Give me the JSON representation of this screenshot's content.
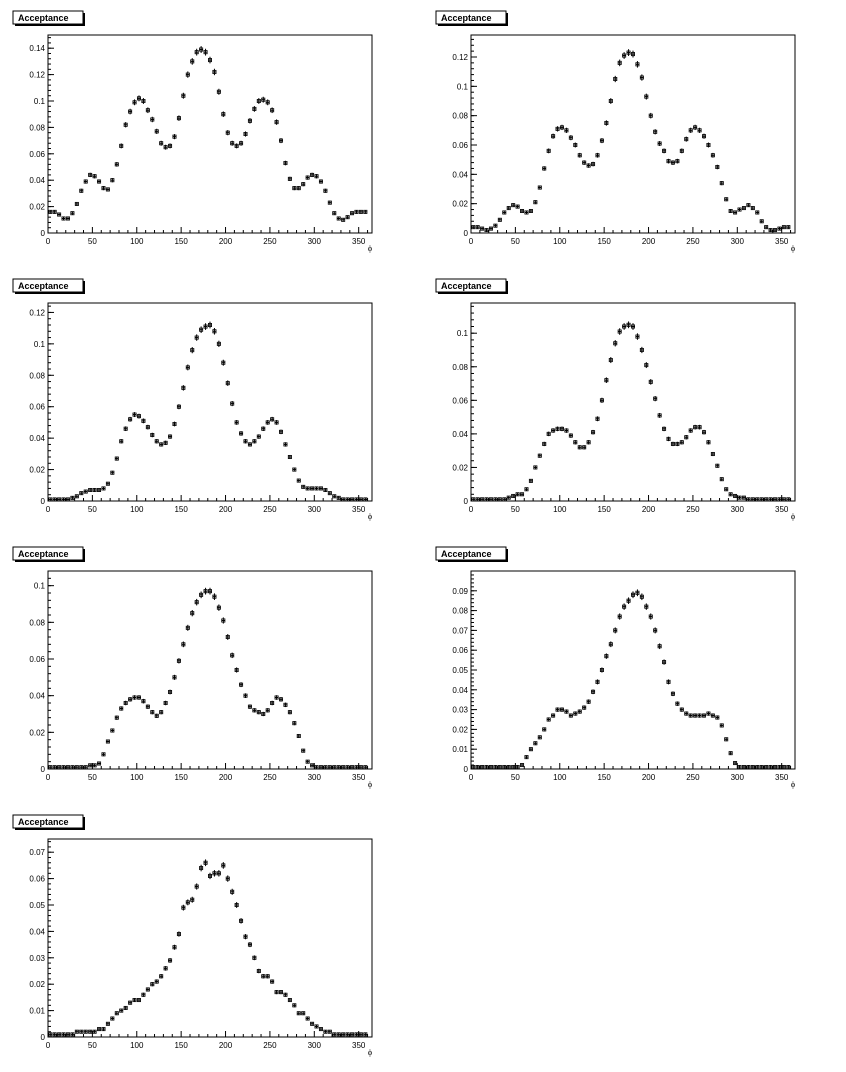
{
  "chart_data": [
    {
      "type": "scatter",
      "title": "Acceptance",
      "xlabel": "ϕ",
      "ylabel": "",
      "xlim": [
        0,
        365
      ],
      "ylim": [
        0,
        0.15
      ],
      "xticks": [
        0,
        50,
        100,
        150,
        200,
        250,
        300,
        350
      ],
      "yticks": [
        0,
        0.02,
        0.04,
        0.06,
        0.08,
        0.1,
        0.12,
        0.14
      ],
      "ytick_labels": [
        "0",
        "0.02",
        "0.04",
        "0.06",
        "0.08",
        "0.1",
        "0.12",
        "0.14"
      ],
      "x": [
        2.5,
        7.5,
        12.5,
        17.5,
        22.5,
        27.5,
        32.5,
        37.5,
        42.5,
        47.5,
        52.5,
        57.5,
        62.5,
        67.5,
        72.5,
        77.5,
        82.5,
        87.5,
        92.5,
        97.5,
        102.5,
        107.5,
        112.5,
        117.5,
        122.5,
        127.5,
        132.5,
        137.5,
        142.5,
        147.5,
        152.5,
        157.5,
        162.5,
        167.5,
        172.5,
        177.5,
        182.5,
        187.5,
        192.5,
        197.5,
        202.5,
        207.5,
        212.5,
        217.5,
        222.5,
        227.5,
        232.5,
        237.5,
        242.5,
        247.5,
        252.5,
        257.5,
        262.5,
        267.5,
        272.5,
        277.5,
        282.5,
        287.5,
        292.5,
        297.5,
        302.5,
        307.5,
        312.5,
        317.5,
        322.5,
        327.5,
        332.5,
        337.5,
        342.5,
        347.5,
        352.5,
        357.5
      ],
      "y": [
        0.016,
        0.016,
        0.014,
        0.011,
        0.011,
        0.015,
        0.022,
        0.032,
        0.039,
        0.044,
        0.043,
        0.039,
        0.034,
        0.033,
        0.04,
        0.052,
        0.066,
        0.082,
        0.092,
        0.099,
        0.102,
        0.1,
        0.093,
        0.086,
        0.077,
        0.068,
        0.065,
        0.066,
        0.073,
        0.087,
        0.104,
        0.12,
        0.13,
        0.137,
        0.139,
        0.137,
        0.131,
        0.122,
        0.107,
        0.09,
        0.076,
        0.068,
        0.066,
        0.068,
        0.075,
        0.085,
        0.094,
        0.1,
        0.101,
        0.099,
        0.093,
        0.084,
        0.07,
        0.053,
        0.041,
        0.034,
        0.034,
        0.037,
        0.042,
        0.044,
        0.043,
        0.039,
        0.032,
        0.023,
        0.015,
        0.011,
        0.01,
        0.012,
        0.015,
        0.016,
        0.016,
        0.016
      ]
    },
    {
      "type": "scatter",
      "title": "Acceptance",
      "xlabel": "ϕ",
      "ylabel": "",
      "xlim": [
        0,
        365
      ],
      "ylim": [
        0,
        0.135
      ],
      "xticks": [
        0,
        50,
        100,
        150,
        200,
        250,
        300,
        350
      ],
      "yticks": [
        0,
        0.02,
        0.04,
        0.06,
        0.08,
        0.1,
        0.12
      ],
      "ytick_labels": [
        "0",
        "0.02",
        "0.04",
        "0.06",
        "0.08",
        "0.1",
        "0.12"
      ],
      "x": [
        2.5,
        7.5,
        12.5,
        17.5,
        22.5,
        27.5,
        32.5,
        37.5,
        42.5,
        47.5,
        52.5,
        57.5,
        62.5,
        67.5,
        72.5,
        77.5,
        82.5,
        87.5,
        92.5,
        97.5,
        102.5,
        107.5,
        112.5,
        117.5,
        122.5,
        127.5,
        132.5,
        137.5,
        142.5,
        147.5,
        152.5,
        157.5,
        162.5,
        167.5,
        172.5,
        177.5,
        182.5,
        187.5,
        192.5,
        197.5,
        202.5,
        207.5,
        212.5,
        217.5,
        222.5,
        227.5,
        232.5,
        237.5,
        242.5,
        247.5,
        252.5,
        257.5,
        262.5,
        267.5,
        272.5,
        277.5,
        282.5,
        287.5,
        292.5,
        297.5,
        302.5,
        307.5,
        312.5,
        317.5,
        322.5,
        327.5,
        332.5,
        337.5,
        342.5,
        347.5,
        352.5,
        357.5
      ],
      "y": [
        0.004,
        0.004,
        0.003,
        0.002,
        0.003,
        0.005,
        0.009,
        0.014,
        0.017,
        0.019,
        0.018,
        0.015,
        0.014,
        0.015,
        0.021,
        0.031,
        0.044,
        0.056,
        0.066,
        0.071,
        0.072,
        0.07,
        0.065,
        0.06,
        0.053,
        0.048,
        0.046,
        0.047,
        0.053,
        0.063,
        0.075,
        0.09,
        0.105,
        0.116,
        0.121,
        0.123,
        0.122,
        0.115,
        0.106,
        0.093,
        0.08,
        0.069,
        0.061,
        0.056,
        0.049,
        0.048,
        0.049,
        0.056,
        0.064,
        0.07,
        0.072,
        0.07,
        0.066,
        0.06,
        0.053,
        0.045,
        0.034,
        0.023,
        0.015,
        0.014,
        0.016,
        0.017,
        0.019,
        0.017,
        0.014,
        0.008,
        0.004,
        0.002,
        0.002,
        0.003,
        0.004,
        0.004
      ]
    },
    {
      "type": "scatter",
      "title": "Acceptance",
      "xlabel": "ϕ",
      "ylabel": "",
      "xlim": [
        0,
        365
      ],
      "ylim": [
        0,
        0.126
      ],
      "xticks": [
        0,
        50,
        100,
        150,
        200,
        250,
        300,
        350
      ],
      "yticks": [
        0,
        0.02,
        0.04,
        0.06,
        0.08,
        0.1,
        0.12
      ],
      "ytick_labels": [
        "0",
        "0.02",
        "0.04",
        "0.06",
        "0.08",
        "0.1",
        "0.12"
      ],
      "x": [
        2.5,
        7.5,
        12.5,
        17.5,
        22.5,
        27.5,
        32.5,
        37.5,
        42.5,
        47.5,
        52.5,
        57.5,
        62.5,
        67.5,
        72.5,
        77.5,
        82.5,
        87.5,
        92.5,
        97.5,
        102.5,
        107.5,
        112.5,
        117.5,
        122.5,
        127.5,
        132.5,
        137.5,
        142.5,
        147.5,
        152.5,
        157.5,
        162.5,
        167.5,
        172.5,
        177.5,
        182.5,
        187.5,
        192.5,
        197.5,
        202.5,
        207.5,
        212.5,
        217.5,
        222.5,
        227.5,
        232.5,
        237.5,
        242.5,
        247.5,
        252.5,
        257.5,
        262.5,
        267.5,
        272.5,
        277.5,
        282.5,
        287.5,
        292.5,
        297.5,
        302.5,
        307.5,
        312.5,
        317.5,
        322.5,
        327.5,
        332.5,
        337.5,
        342.5,
        347.5,
        352.5,
        357.5
      ],
      "y": [
        0.001,
        0.001,
        0.001,
        0.001,
        0.001,
        0.002,
        0.003,
        0.005,
        0.006,
        0.007,
        0.007,
        0.007,
        0.008,
        0.011,
        0.018,
        0.027,
        0.038,
        0.046,
        0.052,
        0.055,
        0.054,
        0.051,
        0.047,
        0.042,
        0.038,
        0.036,
        0.037,
        0.041,
        0.049,
        0.06,
        0.072,
        0.085,
        0.096,
        0.104,
        0.109,
        0.111,
        0.112,
        0.108,
        0.1,
        0.088,
        0.075,
        0.062,
        0.05,
        0.043,
        0.038,
        0.036,
        0.038,
        0.041,
        0.046,
        0.05,
        0.052,
        0.05,
        0.044,
        0.036,
        0.028,
        0.02,
        0.013,
        0.009,
        0.008,
        0.008,
        0.008,
        0.008,
        0.007,
        0.005,
        0.003,
        0.002,
        0.001,
        0.001,
        0.001,
        0.001,
        0.001,
        0.001
      ]
    },
    {
      "type": "scatter",
      "title": "Acceptance",
      "xlabel": "ϕ",
      "ylabel": "",
      "xlim": [
        0,
        365
      ],
      "ylim": [
        0,
        0.118
      ],
      "xticks": [
        0,
        50,
        100,
        150,
        200,
        250,
        300,
        350
      ],
      "yticks": [
        0,
        0.02,
        0.04,
        0.06,
        0.08,
        0.1
      ],
      "ytick_labels": [
        "0",
        "0.02",
        "0.04",
        "0.06",
        "0.08",
        "0.1"
      ],
      "x": [
        2.5,
        7.5,
        12.5,
        17.5,
        22.5,
        27.5,
        32.5,
        37.5,
        42.5,
        47.5,
        52.5,
        57.5,
        62.5,
        67.5,
        72.5,
        77.5,
        82.5,
        87.5,
        92.5,
        97.5,
        102.5,
        107.5,
        112.5,
        117.5,
        122.5,
        127.5,
        132.5,
        137.5,
        142.5,
        147.5,
        152.5,
        157.5,
        162.5,
        167.5,
        172.5,
        177.5,
        182.5,
        187.5,
        192.5,
        197.5,
        202.5,
        207.5,
        212.5,
        217.5,
        222.5,
        227.5,
        232.5,
        237.5,
        242.5,
        247.5,
        252.5,
        257.5,
        262.5,
        267.5,
        272.5,
        277.5,
        282.5,
        287.5,
        292.5,
        297.5,
        302.5,
        307.5,
        312.5,
        317.5,
        322.5,
        327.5,
        332.5,
        337.5,
        342.5,
        347.5,
        352.5,
        357.5
      ],
      "y": [
        0.001,
        0.001,
        0.001,
        0.001,
        0.001,
        0.001,
        0.001,
        0.001,
        0.002,
        0.003,
        0.004,
        0.004,
        0.007,
        0.012,
        0.02,
        0.027,
        0.034,
        0.04,
        0.042,
        0.043,
        0.043,
        0.042,
        0.039,
        0.035,
        0.032,
        0.032,
        0.035,
        0.041,
        0.049,
        0.06,
        0.072,
        0.084,
        0.094,
        0.101,
        0.104,
        0.105,
        0.104,
        0.098,
        0.09,
        0.081,
        0.071,
        0.061,
        0.051,
        0.043,
        0.037,
        0.034,
        0.034,
        0.035,
        0.038,
        0.042,
        0.044,
        0.044,
        0.041,
        0.035,
        0.028,
        0.021,
        0.013,
        0.007,
        0.004,
        0.003,
        0.002,
        0.002,
        0.001,
        0.001,
        0.001,
        0.001,
        0.001,
        0.001,
        0.001,
        0.001,
        0.001,
        0.001
      ]
    },
    {
      "type": "scatter",
      "title": "Acceptance",
      "xlabel": "ϕ",
      "ylabel": "",
      "xlim": [
        0,
        365
      ],
      "ylim": [
        0,
        0.108
      ],
      "xticks": [
        0,
        50,
        100,
        150,
        200,
        250,
        300,
        350
      ],
      "yticks": [
        0,
        0.02,
        0.04,
        0.06,
        0.08,
        0.1
      ],
      "ytick_labels": [
        "0",
        "0.02",
        "0.04",
        "0.06",
        "0.08",
        "0.1"
      ],
      "x": [
        2.5,
        7.5,
        12.5,
        17.5,
        22.5,
        27.5,
        32.5,
        37.5,
        42.5,
        47.5,
        52.5,
        57.5,
        62.5,
        67.5,
        72.5,
        77.5,
        82.5,
        87.5,
        92.5,
        97.5,
        102.5,
        107.5,
        112.5,
        117.5,
        122.5,
        127.5,
        132.5,
        137.5,
        142.5,
        147.5,
        152.5,
        157.5,
        162.5,
        167.5,
        172.5,
        177.5,
        182.5,
        187.5,
        192.5,
        197.5,
        202.5,
        207.5,
        212.5,
        217.5,
        222.5,
        227.5,
        232.5,
        237.5,
        242.5,
        247.5,
        252.5,
        257.5,
        262.5,
        267.5,
        272.5,
        277.5,
        282.5,
        287.5,
        292.5,
        297.5,
        302.5,
        307.5,
        312.5,
        317.5,
        322.5,
        327.5,
        332.5,
        337.5,
        342.5,
        347.5,
        352.5,
        357.5
      ],
      "y": [
        0.001,
        0.001,
        0.001,
        0.001,
        0.001,
        0.001,
        0.001,
        0.001,
        0.001,
        0.002,
        0.002,
        0.003,
        0.008,
        0.015,
        0.021,
        0.028,
        0.033,
        0.036,
        0.038,
        0.039,
        0.039,
        0.037,
        0.034,
        0.031,
        0.029,
        0.031,
        0.036,
        0.042,
        0.05,
        0.059,
        0.068,
        0.077,
        0.085,
        0.091,
        0.095,
        0.097,
        0.097,
        0.094,
        0.088,
        0.081,
        0.072,
        0.062,
        0.054,
        0.046,
        0.04,
        0.034,
        0.032,
        0.031,
        0.03,
        0.032,
        0.036,
        0.039,
        0.038,
        0.035,
        0.031,
        0.025,
        0.018,
        0.01,
        0.004,
        0.002,
        0.001,
        0.001,
        0.001,
        0.001,
        0.001,
        0.001,
        0.001,
        0.001,
        0.001,
        0.001,
        0.001,
        0.001
      ]
    },
    {
      "type": "scatter",
      "title": "Acceptance",
      "xlabel": "ϕ",
      "ylabel": "",
      "xlim": [
        0,
        365
      ],
      "ylim": [
        0,
        0.1
      ],
      "xticks": [
        0,
        50,
        100,
        150,
        200,
        250,
        300,
        350
      ],
      "yticks": [
        0,
        0.01,
        0.02,
        0.03,
        0.04,
        0.05,
        0.06,
        0.07,
        0.08,
        0.09
      ],
      "ytick_labels": [
        "0",
        "0.01",
        "0.02",
        "0.03",
        "0.04",
        "0.05",
        "0.06",
        "0.07",
        "0.08",
        "0.09"
      ],
      "x": [
        2.5,
        7.5,
        12.5,
        17.5,
        22.5,
        27.5,
        32.5,
        37.5,
        42.5,
        47.5,
        52.5,
        57.5,
        62.5,
        67.5,
        72.5,
        77.5,
        82.5,
        87.5,
        92.5,
        97.5,
        102.5,
        107.5,
        112.5,
        117.5,
        122.5,
        127.5,
        132.5,
        137.5,
        142.5,
        147.5,
        152.5,
        157.5,
        162.5,
        167.5,
        172.5,
        177.5,
        182.5,
        187.5,
        192.5,
        197.5,
        202.5,
        207.5,
        212.5,
        217.5,
        222.5,
        227.5,
        232.5,
        237.5,
        242.5,
        247.5,
        252.5,
        257.5,
        262.5,
        267.5,
        272.5,
        277.5,
        282.5,
        287.5,
        292.5,
        297.5,
        302.5,
        307.5,
        312.5,
        317.5,
        322.5,
        327.5,
        332.5,
        337.5,
        342.5,
        347.5,
        352.5,
        357.5
      ],
      "y": [
        0.001,
        0.001,
        0.001,
        0.001,
        0.001,
        0.001,
        0.001,
        0.001,
        0.001,
        0.001,
        0.001,
        0.002,
        0.006,
        0.01,
        0.013,
        0.016,
        0.02,
        0.025,
        0.027,
        0.03,
        0.03,
        0.029,
        0.027,
        0.028,
        0.029,
        0.031,
        0.034,
        0.039,
        0.044,
        0.05,
        0.057,
        0.063,
        0.07,
        0.077,
        0.082,
        0.085,
        0.088,
        0.089,
        0.087,
        0.082,
        0.077,
        0.07,
        0.062,
        0.054,
        0.044,
        0.038,
        0.033,
        0.03,
        0.028,
        0.027,
        0.027,
        0.027,
        0.027,
        0.028,
        0.027,
        0.026,
        0.022,
        0.015,
        0.008,
        0.003,
        0.001,
        0.001,
        0.001,
        0.001,
        0.001,
        0.001,
        0.001,
        0.001,
        0.001,
        0.001,
        0.001,
        0.001
      ]
    },
    {
      "type": "scatter",
      "title": "Acceptance",
      "xlabel": "ϕ",
      "ylabel": "",
      "xlim": [
        0,
        365
      ],
      "ylim": [
        0,
        0.075
      ],
      "xticks": [
        0,
        50,
        100,
        150,
        200,
        250,
        300,
        350
      ],
      "yticks": [
        0,
        0.01,
        0.02,
        0.03,
        0.04,
        0.05,
        0.06,
        0.07
      ],
      "ytick_labels": [
        "0",
        "0.01",
        "0.02",
        "0.03",
        "0.04",
        "0.05",
        "0.06",
        "0.07"
      ],
      "x": [
        2.5,
        7.5,
        12.5,
        17.5,
        22.5,
        27.5,
        32.5,
        37.5,
        42.5,
        47.5,
        52.5,
        57.5,
        62.5,
        67.5,
        72.5,
        77.5,
        82.5,
        87.5,
        92.5,
        97.5,
        102.5,
        107.5,
        112.5,
        117.5,
        122.5,
        127.5,
        132.5,
        137.5,
        142.5,
        147.5,
        152.5,
        157.5,
        162.5,
        167.5,
        172.5,
        177.5,
        182.5,
        187.5,
        192.5,
        197.5,
        202.5,
        207.5,
        212.5,
        217.5,
        222.5,
        227.5,
        232.5,
        237.5,
        242.5,
        247.5,
        252.5,
        257.5,
        262.5,
        267.5,
        272.5,
        277.5,
        282.5,
        287.5,
        292.5,
        297.5,
        302.5,
        307.5,
        312.5,
        317.5,
        322.5,
        327.5,
        332.5,
        337.5,
        342.5,
        347.5,
        352.5,
        357.5
      ],
      "y": [
        0.001,
        0.001,
        0.001,
        0.001,
        0.001,
        0.001,
        0.002,
        0.002,
        0.002,
        0.002,
        0.002,
        0.003,
        0.003,
        0.005,
        0.007,
        0.009,
        0.01,
        0.011,
        0.013,
        0.014,
        0.014,
        0.016,
        0.018,
        0.02,
        0.021,
        0.023,
        0.026,
        0.029,
        0.034,
        0.039,
        0.049,
        0.051,
        0.052,
        0.057,
        0.064,
        0.066,
        0.061,
        0.062,
        0.062,
        0.065,
        0.06,
        0.055,
        0.05,
        0.044,
        0.038,
        0.035,
        0.03,
        0.025,
        0.023,
        0.023,
        0.021,
        0.017,
        0.017,
        0.016,
        0.014,
        0.012,
        0.009,
        0.009,
        0.007,
        0.005,
        0.004,
        0.003,
        0.002,
        0.002,
        0.001,
        0.001,
        0.001,
        0.001,
        0.001,
        0.001,
        0.001,
        0.001
      ]
    }
  ]
}
